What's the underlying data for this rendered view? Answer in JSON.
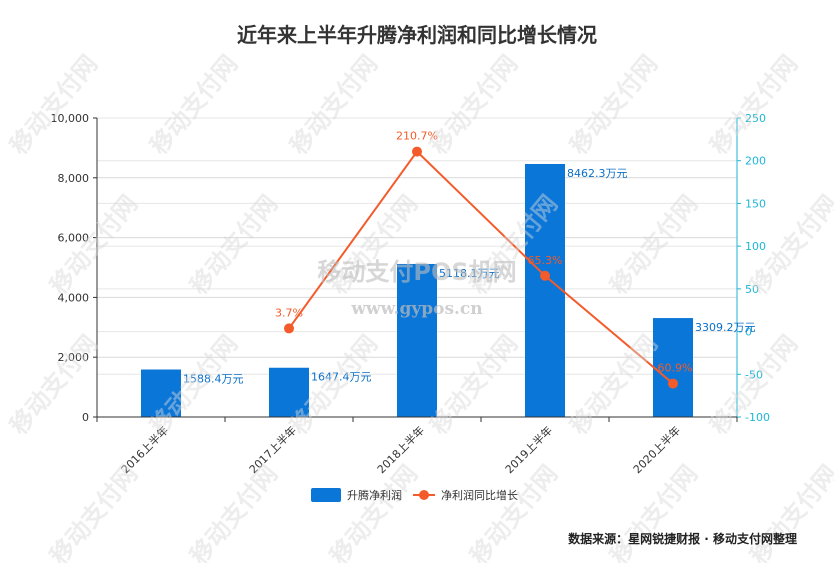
{
  "chart_data": {
    "type": "bar+line",
    "title": "近年来上半年升腾净利润和同比增长情况",
    "categories": [
      "2016上半年",
      "2017上半年",
      "2018上半年",
      "2019上半年",
      "2020上半年"
    ],
    "series": [
      {
        "name": "升腾净利润",
        "type": "bar",
        "axis": "left",
        "values": [
          1588.4,
          1647.4,
          5118.1,
          8462.3,
          3309.2
        ],
        "labels": [
          "1588.4万元",
          "1647.4万元",
          "5118.1万元",
          "8462.3万元",
          "3309.2万元"
        ],
        "color": "#0a76d8"
      },
      {
        "name": "净利润同比增长",
        "type": "line",
        "axis": "right",
        "values": [
          null,
          3.7,
          210.7,
          65.3,
          -60.9
        ],
        "labels": [
          "",
          "3.7%",
          "210.7%",
          "65.3%",
          "-60.9%"
        ],
        "color": "#f45b2a"
      }
    ],
    "left_axis": {
      "min": 0,
      "max": 10000,
      "ticks": [
        0,
        2000,
        4000,
        6000,
        8000,
        10000
      ],
      "tick_labels": [
        "0",
        "2,000",
        "4,000",
        "6,000",
        "8,000",
        "10,000"
      ]
    },
    "right_axis": {
      "min": -100,
      "max": 250,
      "ticks": [
        -100,
        -50,
        0,
        50,
        100,
        150,
        200,
        250
      ],
      "tick_labels": [
        "-100",
        "-50",
        "0",
        "50",
        "100",
        "150",
        "200",
        "250"
      ],
      "color": "#1fb6d6"
    },
    "grid": true,
    "legend": "bottom-center"
  },
  "footer": {
    "source": "数据来源：星网锐捷财报 · 移动支付网整理"
  },
  "watermark": {
    "text": "移动支付网",
    "brand": "移动支付POS机网",
    "url": "www.gypos.cn"
  }
}
